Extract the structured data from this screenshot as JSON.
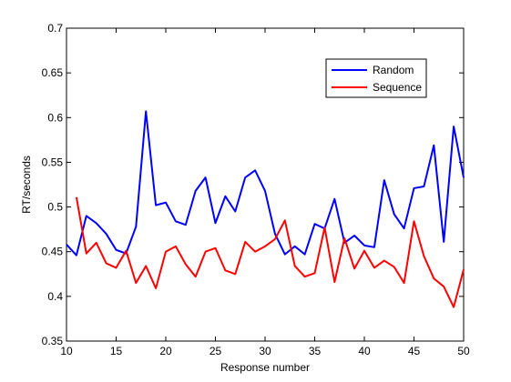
{
  "chart_data": {
    "type": "line",
    "title": "",
    "xlabel": "Response number",
    "ylabel": "RT/seconds",
    "xlim": [
      10,
      50
    ],
    "ylim": [
      0.35,
      0.7
    ],
    "xticks": [
      10,
      15,
      20,
      25,
      30,
      35,
      40,
      45,
      50
    ],
    "yticks": [
      0.35,
      0.4,
      0.45,
      0.5,
      0.55,
      0.6,
      0.65,
      0.7
    ],
    "xtick_labels": [
      "10",
      "15",
      "20",
      "25",
      "30",
      "35",
      "40",
      "45",
      "50"
    ],
    "ytick_labels": [
      "0.35",
      "0.4",
      "0.45",
      "0.5",
      "0.55",
      "0.6",
      "0.65",
      "0.7"
    ],
    "grid": false,
    "legend_position": "top-right",
    "series": [
      {
        "name": "Random",
        "color": "#0000ff",
        "x": [
          10,
          11,
          12,
          13,
          14,
          15,
          16,
          17,
          18,
          19,
          20,
          21,
          22,
          23,
          24,
          25,
          26,
          27,
          28,
          29,
          30,
          31,
          32,
          33,
          34,
          35,
          36,
          37,
          38,
          39,
          40,
          41,
          42,
          43,
          44,
          45,
          46,
          47,
          48,
          49,
          50
        ],
        "y": [
          0.458,
          0.446,
          0.49,
          0.482,
          0.47,
          0.452,
          0.448,
          0.478,
          0.607,
          0.502,
          0.505,
          0.484,
          0.48,
          0.518,
          0.533,
          0.482,
          0.512,
          0.495,
          0.533,
          0.541,
          0.518,
          0.47,
          0.447,
          0.456,
          0.447,
          0.481,
          0.476,
          0.509,
          0.46,
          0.468,
          0.457,
          0.455,
          0.53,
          0.492,
          0.476,
          0.521,
          0.523,
          0.569,
          0.461,
          0.59,
          0.533
        ]
      },
      {
        "name": "Sequence",
        "color": "#ff0000",
        "x": [
          11,
          12,
          13,
          14,
          15,
          16,
          17,
          18,
          19,
          20,
          21,
          22,
          23,
          24,
          25,
          26,
          27,
          28,
          29,
          30,
          31,
          32,
          33,
          34,
          35,
          36,
          37,
          38,
          39,
          40,
          41,
          42,
          43,
          44,
          45,
          46,
          47,
          48,
          49,
          50
        ],
        "y": [
          0.511,
          0.448,
          0.46,
          0.437,
          0.432,
          0.451,
          0.415,
          0.434,
          0.409,
          0.45,
          0.456,
          0.436,
          0.422,
          0.45,
          0.454,
          0.429,
          0.425,
          0.461,
          0.45,
          0.456,
          0.464,
          0.485,
          0.434,
          0.422,
          0.426,
          0.477,
          0.416,
          0.465,
          0.431,
          0.451,
          0.432,
          0.44,
          0.433,
          0.415,
          0.484,
          0.445,
          0.42,
          0.411,
          0.388,
          0.43
        ]
      }
    ]
  }
}
